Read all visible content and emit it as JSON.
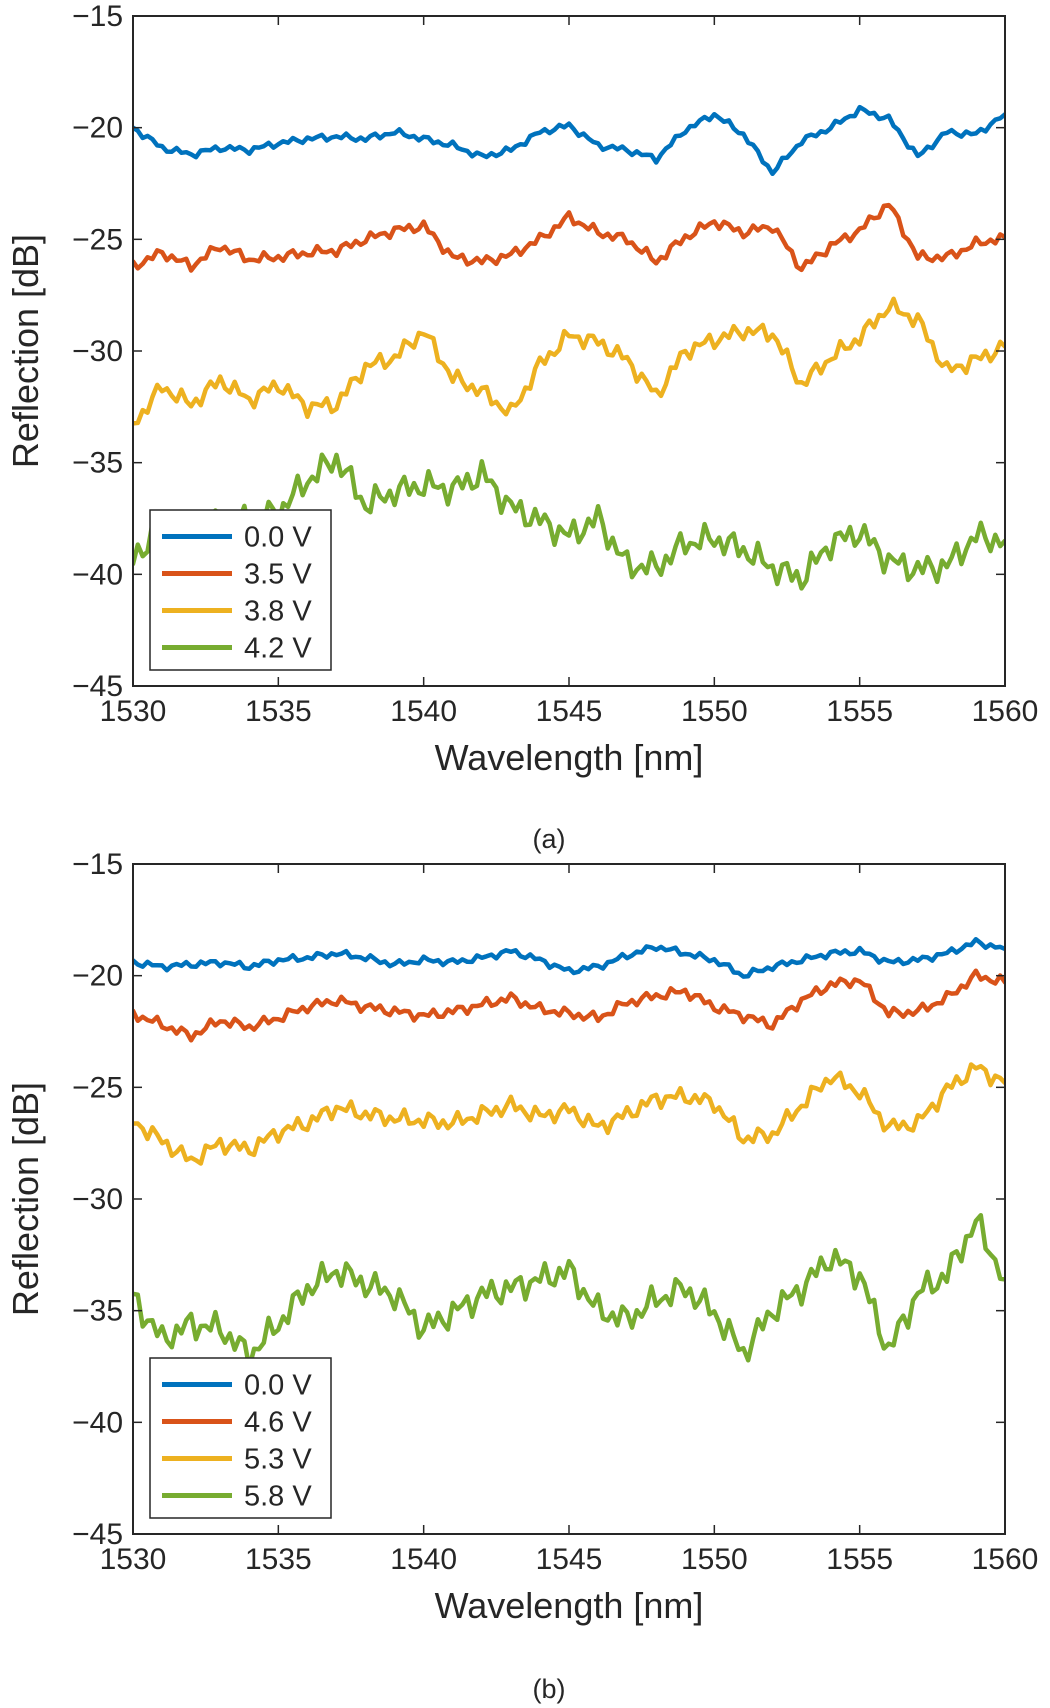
{
  "figure": {
    "panels": [
      "a",
      "b"
    ]
  },
  "chart_data": [
    {
      "type": "line",
      "panel_label": "(a)",
      "title": "",
      "xlabel": "Wavelength [nm]",
      "ylabel": "Reflection [dB]",
      "xlim": [
        1530,
        1560
      ],
      "ylim": [
        -45,
        -15
      ],
      "xticks": [
        "1530",
        "1535",
        "1540",
        "1545",
        "1550",
        "1555",
        "1560"
      ],
      "yticks": [
        "−15",
        "−20",
        "−25",
        "−30",
        "−35",
        "−40",
        "−45"
      ],
      "legend_position": "bottom-left",
      "x": [
        1530,
        1531,
        1532,
        1533,
        1534,
        1535,
        1536,
        1537,
        1538,
        1539,
        1540,
        1541,
        1542,
        1543,
        1544,
        1545,
        1546,
        1547,
        1548,
        1549,
        1550,
        1551,
        1552,
        1553,
        1554,
        1555,
        1556,
        1557,
        1558,
        1559,
        1560
      ],
      "series": [
        {
          "name": "0.0 V",
          "color": "#0072BD",
          "values": [
            -20.0,
            -20.9,
            -21.2,
            -20.9,
            -21.0,
            -20.7,
            -20.5,
            -20.4,
            -20.5,
            -20.2,
            -20.5,
            -20.8,
            -21.3,
            -21.0,
            -20.2,
            -19.9,
            -20.8,
            -21.0,
            -21.4,
            -20.1,
            -19.4,
            -20.3,
            -22.0,
            -20.6,
            -20.0,
            -19.2,
            -19.6,
            -21.3,
            -20.2,
            -20.3,
            -19.4
          ]
        },
        {
          "name": "3.5 V",
          "color": "#D95319",
          "values": [
            -26.2,
            -25.6,
            -26.2,
            -25.3,
            -25.9,
            -25.8,
            -25.6,
            -25.5,
            -25.0,
            -24.6,
            -24.4,
            -25.8,
            -26.0,
            -25.7,
            -25.0,
            -24.0,
            -24.7,
            -25.0,
            -26.0,
            -24.9,
            -24.2,
            -24.7,
            -24.4,
            -26.3,
            -25.3,
            -24.6,
            -23.4,
            -25.8,
            -25.8,
            -25.2,
            -24.9
          ]
        },
        {
          "name": "3.8 V",
          "color": "#EDB120",
          "values": [
            -33.3,
            -31.6,
            -32.4,
            -31.3,
            -32.2,
            -31.5,
            -32.5,
            -32.4,
            -30.7,
            -30.3,
            -29.1,
            -31.2,
            -31.8,
            -32.8,
            -30.6,
            -29.3,
            -29.6,
            -30.4,
            -32.0,
            -30.0,
            -29.5,
            -29.1,
            -29.2,
            -31.5,
            -30.3,
            -29.4,
            -28.0,
            -28.6,
            -30.9,
            -30.4,
            -29.8
          ]
        },
        {
          "name": "4.2 V",
          "color": "#77AC30",
          "values": [
            -39.4,
            -37.6,
            -38.0,
            -37.5,
            -37.6,
            -37.2,
            -35.8,
            -34.8,
            -36.9,
            -36.3,
            -36.0,
            -36.2,
            -35.5,
            -37.0,
            -37.6,
            -38.3,
            -37.5,
            -39.6,
            -39.7,
            -38.6,
            -38.4,
            -38.9,
            -39.7,
            -40.2,
            -38.6,
            -38.1,
            -39.4,
            -39.8,
            -39.6,
            -38.3,
            -38.5
          ]
        }
      ]
    },
    {
      "type": "line",
      "panel_label": "(b)",
      "title": "",
      "xlabel": "Wavelength [nm]",
      "ylabel": "Reflection [dB]",
      "xlim": [
        1530,
        1560
      ],
      "ylim": [
        -45,
        -15
      ],
      "xticks": [
        "1530",
        "1535",
        "1540",
        "1545",
        "1550",
        "1555",
        "1560"
      ],
      "yticks": [
        "−15",
        "−20",
        "−25",
        "−30",
        "−35",
        "−40",
        "−45"
      ],
      "legend_position": "bottom-left",
      "x": [
        1530,
        1531,
        1532,
        1533,
        1534,
        1535,
        1536,
        1537,
        1538,
        1539,
        1540,
        1541,
        1542,
        1543,
        1544,
        1545,
        1546,
        1547,
        1548,
        1549,
        1550,
        1551,
        1552,
        1553,
        1554,
        1555,
        1556,
        1557,
        1558,
        1559,
        1560
      ],
      "series": [
        {
          "name": "0.0 V",
          "color": "#0072BD",
          "values": [
            -19.4,
            -19.6,
            -19.5,
            -19.4,
            -19.6,
            -19.3,
            -19.2,
            -19.0,
            -19.2,
            -19.5,
            -19.3,
            -19.4,
            -19.2,
            -18.9,
            -19.3,
            -19.8,
            -19.6,
            -19.1,
            -18.7,
            -19.0,
            -19.3,
            -20.0,
            -19.6,
            -19.3,
            -19.0,
            -18.9,
            -19.4,
            -19.3,
            -19.0,
            -18.5,
            -18.8
          ]
        },
        {
          "name": "4.6 V",
          "color": "#D95319",
          "values": [
            -21.7,
            -22.2,
            -22.7,
            -22.0,
            -22.3,
            -21.9,
            -21.4,
            -21.1,
            -21.4,
            -21.6,
            -21.8,
            -21.6,
            -21.3,
            -21.0,
            -21.5,
            -21.7,
            -21.9,
            -21.2,
            -20.9,
            -20.7,
            -21.4,
            -21.8,
            -22.2,
            -21.1,
            -20.4,
            -20.2,
            -21.7,
            -21.6,
            -21.0,
            -20.0,
            -20.3
          ]
        },
        {
          "name": "5.3 V",
          "color": "#EDB120",
          "values": [
            -26.5,
            -27.4,
            -28.3,
            -27.5,
            -27.8,
            -27.0,
            -26.6,
            -25.9,
            -26.2,
            -26.4,
            -26.5,
            -26.6,
            -26.2,
            -25.8,
            -26.3,
            -26.0,
            -26.8,
            -26.2,
            -25.5,
            -25.4,
            -25.7,
            -27.3,
            -27.1,
            -25.8,
            -24.5,
            -25.2,
            -26.8,
            -26.6,
            -25.1,
            -24.1,
            -24.8
          ]
        },
        {
          "name": "5.8 V",
          "color": "#77AC30",
          "values": [
            -34.4,
            -36.3,
            -35.6,
            -35.8,
            -37.0,
            -35.6,
            -34.0,
            -33.2,
            -33.8,
            -34.3,
            -35.8,
            -35.1,
            -34.3,
            -34.0,
            -33.6,
            -33.2,
            -35.0,
            -35.4,
            -34.5,
            -34.0,
            -35.1,
            -36.9,
            -35.0,
            -34.0,
            -32.6,
            -33.4,
            -36.8,
            -34.2,
            -33.4,
            -31.0,
            -33.6
          ]
        }
      ]
    }
  ]
}
